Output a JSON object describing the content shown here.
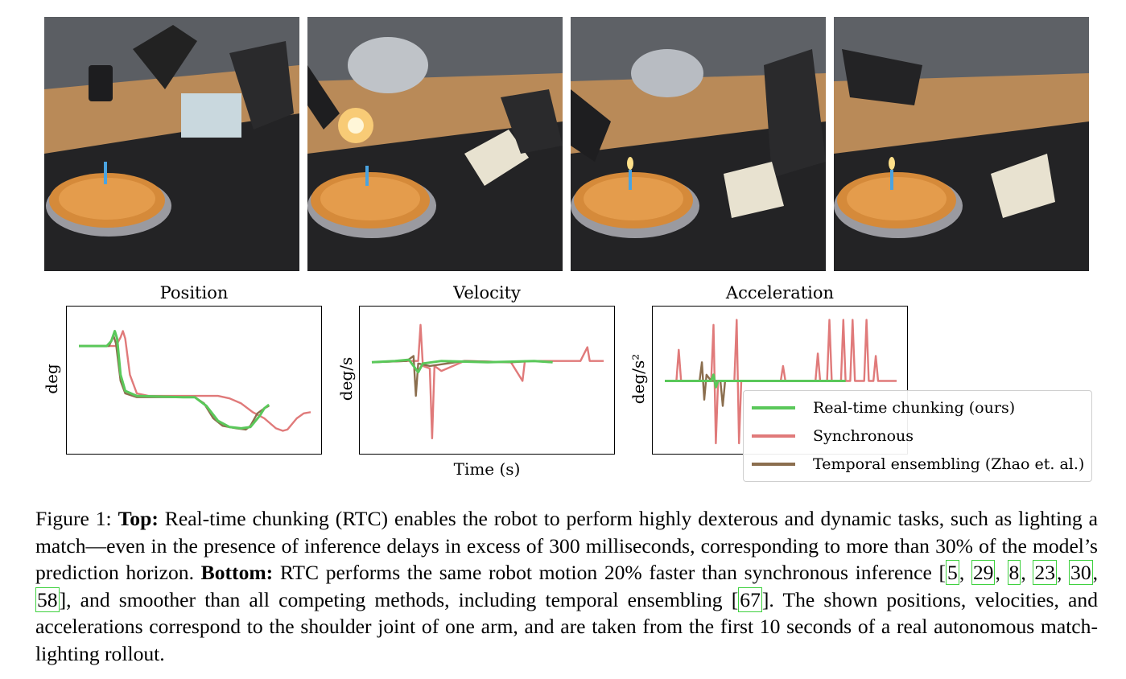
{
  "figure": {
    "photos": [
      {
        "alt": "Robot arms beside a pie with a candle, holding a matchbox"
      },
      {
        "alt": "Robot striking a match, flame flaring"
      },
      {
        "alt": "Robot bringing the lit match to the candle"
      },
      {
        "alt": "Candle lit on the pie, matchbox set down"
      }
    ],
    "charts": [
      {
        "title": "Position",
        "ylabel": "deg",
        "xlabel": ""
      },
      {
        "title": "Velocity",
        "ylabel": "deg/s",
        "xlabel": "Time (s)"
      },
      {
        "title": "Acceleration",
        "ylabel": "deg/s²",
        "xlabel": ""
      }
    ],
    "legend": [
      {
        "label": "Real-time chunking (ours)",
        "color": "#5ac85a"
      },
      {
        "label": "Synchronous",
        "color": "#e07a7a"
      },
      {
        "label": "Temporal ensembling (Zhao et. al.)",
        "color": "#8b6e4e"
      }
    ]
  },
  "chart_data": [
    {
      "type": "line",
      "title": "Position",
      "ylabel": "deg",
      "grid": false,
      "series": [
        {
          "name": "Real-time chunking (ours)",
          "color": "#5ac85a",
          "points": [
            [
              0.0,
              0.78
            ],
            [
              0.12,
              0.78
            ],
            [
              0.14,
              0.82
            ],
            [
              0.155,
              0.9
            ],
            [
              0.165,
              0.84
            ],
            [
              0.18,
              0.55
            ],
            [
              0.2,
              0.42
            ],
            [
              0.25,
              0.38
            ],
            [
              0.45,
              0.37
            ],
            [
              0.5,
              0.37
            ],
            [
              0.55,
              0.3
            ],
            [
              0.6,
              0.18
            ],
            [
              0.65,
              0.13
            ],
            [
              0.7,
              0.12
            ],
            [
              0.74,
              0.13
            ],
            [
              0.78,
              0.22
            ],
            [
              0.8,
              0.28
            ],
            [
              0.82,
              0.31
            ]
          ]
        },
        {
          "name": "Synchronous",
          "color": "#e07a7a",
          "points": [
            [
              0.0,
              0.78
            ],
            [
              0.16,
              0.78
            ],
            [
              0.18,
              0.85
            ],
            [
              0.19,
              0.9
            ],
            [
              0.2,
              0.84
            ],
            [
              0.22,
              0.55
            ],
            [
              0.25,
              0.4
            ],
            [
              0.3,
              0.38
            ],
            [
              0.5,
              0.38
            ],
            [
              0.6,
              0.38
            ],
            [
              0.65,
              0.36
            ],
            [
              0.7,
              0.32
            ],
            [
              0.75,
              0.25
            ],
            [
              0.8,
              0.2
            ],
            [
              0.85,
              0.12
            ],
            [
              0.88,
              0.1
            ],
            [
              0.9,
              0.11
            ],
            [
              0.94,
              0.2
            ],
            [
              0.97,
              0.24
            ],
            [
              1.0,
              0.25
            ]
          ]
        },
        {
          "name": "Temporal ensembling (Zhao et. al.)",
          "color": "#8b6e4e",
          "points": [
            [
              0.0,
              0.78
            ],
            [
              0.13,
              0.78
            ],
            [
              0.15,
              0.86
            ],
            [
              0.16,
              0.8
            ],
            [
              0.18,
              0.5
            ],
            [
              0.2,
              0.4
            ],
            [
              0.25,
              0.37
            ],
            [
              0.5,
              0.37
            ],
            [
              0.54,
              0.32
            ],
            [
              0.58,
              0.2
            ],
            [
              0.62,
              0.14
            ],
            [
              0.68,
              0.12
            ],
            [
              0.72,
              0.11
            ],
            [
              0.74,
              0.14
            ],
            [
              0.77,
              0.24
            ],
            [
              0.8,
              0.28
            ],
            [
              0.82,
              0.3
            ]
          ]
        }
      ]
    },
    {
      "type": "line",
      "title": "Velocity",
      "ylabel": "deg/s",
      "xlabel": "Time (s)",
      "grid": false,
      "series": [
        {
          "name": "Real-time chunking (ours)",
          "color": "#5ac85a",
          "points": [
            [
              0.0,
              0.65
            ],
            [
              0.1,
              0.66
            ],
            [
              0.16,
              0.67
            ],
            [
              0.18,
              0.62
            ],
            [
              0.2,
              0.57
            ],
            [
              0.22,
              0.64
            ],
            [
              0.3,
              0.66
            ],
            [
              0.5,
              0.65
            ],
            [
              0.7,
              0.66
            ],
            [
              0.78,
              0.65
            ]
          ]
        },
        {
          "name": "Synchronous",
          "color": "#e07a7a",
          "points": [
            [
              0.0,
              0.65
            ],
            [
              0.15,
              0.66
            ],
            [
              0.2,
              0.66
            ],
            [
              0.21,
              0.95
            ],
            [
              0.22,
              0.62
            ],
            [
              0.25,
              0.6
            ],
            [
              0.26,
              0.04
            ],
            [
              0.27,
              0.62
            ],
            [
              0.3,
              0.58
            ],
            [
              0.4,
              0.66
            ],
            [
              0.6,
              0.65
            ],
            [
              0.65,
              0.5
            ],
            [
              0.66,
              0.66
            ],
            [
              0.8,
              0.66
            ],
            [
              0.9,
              0.66
            ],
            [
              0.93,
              0.77
            ],
            [
              0.94,
              0.66
            ],
            [
              1.0,
              0.66
            ]
          ]
        },
        {
          "name": "Temporal ensembling (Zhao et. al.)",
          "color": "#8b6e4e",
          "points": [
            [
              0.0,
              0.65
            ],
            [
              0.15,
              0.66
            ],
            [
              0.18,
              0.7
            ],
            [
              0.19,
              0.38
            ],
            [
              0.2,
              0.64
            ],
            [
              0.25,
              0.62
            ],
            [
              0.4,
              0.66
            ],
            [
              0.6,
              0.65
            ],
            [
              0.7,
              0.66
            ],
            [
              0.78,
              0.65
            ]
          ]
        }
      ]
    },
    {
      "type": "line",
      "title": "Acceleration",
      "ylabel": "deg/s²",
      "grid": false,
      "series": [
        {
          "name": "Real-time chunking (ours)",
          "color": "#5ac85a",
          "points": [
            [
              0.0,
              0.5
            ],
            [
              0.2,
              0.5
            ],
            [
              0.21,
              0.55
            ],
            [
              0.22,
              0.45
            ],
            [
              0.23,
              0.5
            ],
            [
              0.5,
              0.5
            ],
            [
              0.78,
              0.5
            ]
          ]
        },
        {
          "name": "Synchronous",
          "color": "#e07a7a",
          "points": [
            [
              0.0,
              0.5
            ],
            [
              0.05,
              0.5
            ],
            [
              0.06,
              0.75
            ],
            [
              0.07,
              0.5
            ],
            [
              0.2,
              0.5
            ],
            [
              0.21,
              0.95
            ],
            [
              0.22,
              0.0
            ],
            [
              0.23,
              0.5
            ],
            [
              0.3,
              0.5
            ],
            [
              0.31,
              0.99
            ],
            [
              0.32,
              0.0
            ],
            [
              0.33,
              0.5
            ],
            [
              0.5,
              0.5
            ],
            [
              0.51,
              0.62
            ],
            [
              0.52,
              0.5
            ],
            [
              0.65,
              0.5
            ],
            [
              0.66,
              0.72
            ],
            [
              0.67,
              0.5
            ],
            [
              0.7,
              0.5
            ],
            [
              0.71,
              0.99
            ],
            [
              0.72,
              0.5
            ],
            [
              0.76,
              0.5
            ],
            [
              0.77,
              0.99
            ],
            [
              0.78,
              0.5
            ],
            [
              0.8,
              0.5
            ],
            [
              0.81,
              0.99
            ],
            [
              0.82,
              0.5
            ],
            [
              0.86,
              0.5
            ],
            [
              0.87,
              0.99
            ],
            [
              0.88,
              0.5
            ],
            [
              0.9,
              0.5
            ],
            [
              0.91,
              0.7
            ],
            [
              0.92,
              0.5
            ],
            [
              1.0,
              0.5
            ]
          ]
        },
        {
          "name": "Temporal ensembling (Zhao et. al.)",
          "color": "#8b6e4e",
          "points": [
            [
              0.0,
              0.5
            ],
            [
              0.15,
              0.5
            ],
            [
              0.16,
              0.65
            ],
            [
              0.17,
              0.35
            ],
            [
              0.18,
              0.55
            ],
            [
              0.2,
              0.5
            ],
            [
              0.24,
              0.5
            ],
            [
              0.25,
              0.3
            ],
            [
              0.26,
              0.5
            ],
            [
              0.5,
              0.5
            ],
            [
              0.78,
              0.5
            ]
          ]
        }
      ]
    }
  ],
  "caption": {
    "figure_label": "Figure 1: ",
    "top_label": "Top:",
    "top_text": " Real-time chunking (RTC) enables the robot to perform highly dexterous and dynamic tasks, such as lighting a match—even in the presence of inference delays in excess of 300 milliseconds, corresponding to more than 30% of the model’s prediction horizon. ",
    "bottom_label": "Bottom:",
    "bottom_text_1": " RTC performs the same robot motion 20% faster than synchronous inference [",
    "cites_1": [
      "5",
      "29",
      "8",
      "23",
      "30",
      "58"
    ],
    "bottom_text_2": "], and smoother than all competing methods, including temporal ensembling [",
    "cite_2": "67",
    "bottom_text_3": "]. The shown positions, velocities, and accelerations correspond to the shoulder joint of one arm, and are taken from the first 10 seconds of a real autonomous match-lighting rollout."
  }
}
